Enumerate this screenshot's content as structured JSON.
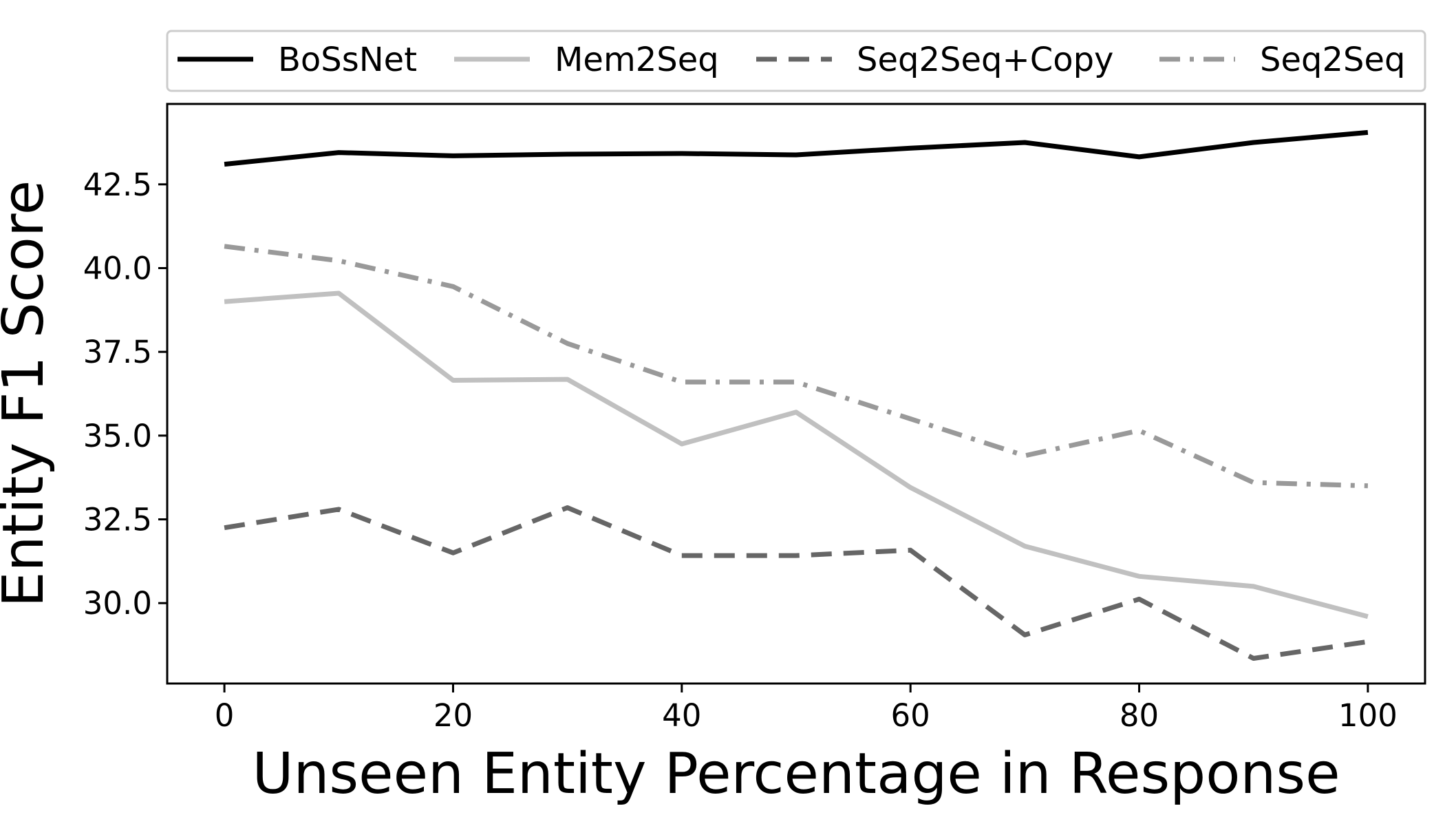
{
  "chart_data": {
    "type": "line",
    "title": "",
    "xlabel": "Unseen Entity Percentage in Response",
    "ylabel": "Entity F1 Score",
    "xlim": [
      -5,
      105
    ],
    "ylim": [
      27.6,
      44.9
    ],
    "xticks": [
      0,
      20,
      40,
      60,
      80,
      100
    ],
    "yticks": [
      30.0,
      32.5,
      35.0,
      37.5,
      40.0,
      42.5
    ],
    "xtick_labels": [
      "0",
      "20",
      "40",
      "60",
      "80",
      "100"
    ],
    "ytick_labels": [
      "30.0",
      "32.5",
      "35.0",
      "37.5",
      "40.0",
      "42.5"
    ],
    "grid": false,
    "legend_position": "top",
    "x": [
      0,
      10,
      20,
      30,
      40,
      50,
      60,
      70,
      80,
      90,
      100
    ],
    "series": [
      {
        "name": "BoSsNet",
        "style": "solid",
        "color": "#000000",
        "values": [
          43.1,
          43.45,
          43.35,
          43.4,
          43.42,
          43.38,
          43.58,
          43.75,
          43.32,
          43.75,
          44.05
        ]
      },
      {
        "name": "Mem2Seq",
        "style": "solid",
        "color": "#c0c0c0",
        "values": [
          39.0,
          39.25,
          36.65,
          36.68,
          34.75,
          35.7,
          33.45,
          31.7,
          30.8,
          30.5,
          29.6
        ]
      },
      {
        "name": "Seq2Seq+Copy",
        "style": "dashed",
        "color": "#666666",
        "values": [
          32.25,
          32.8,
          31.5,
          32.85,
          31.42,
          31.42,
          31.58,
          29.05,
          30.12,
          28.35,
          28.85
        ]
      },
      {
        "name": "Seq2Seq",
        "style": "dashdot",
        "color": "#999999",
        "values": [
          40.65,
          40.22,
          39.45,
          37.75,
          36.6,
          36.6,
          35.5,
          34.4,
          35.15,
          33.6,
          33.5
        ]
      }
    ]
  }
}
